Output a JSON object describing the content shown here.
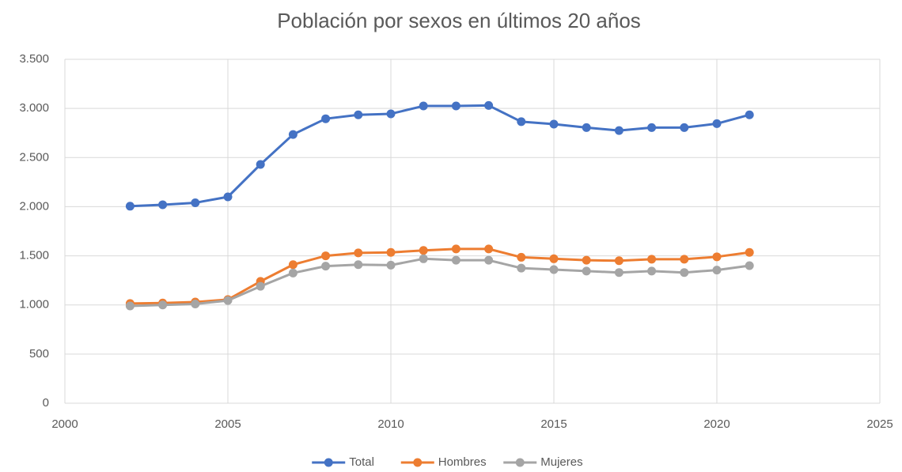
{
  "chart_data": {
    "type": "line",
    "title": "Población por sexos en últimos 20 años",
    "x": [
      2002,
      2003,
      2004,
      2005,
      2006,
      2007,
      2008,
      2009,
      2010,
      2011,
      2012,
      2013,
      2014,
      2015,
      2016,
      2017,
      2018,
      2019,
      2020,
      2021
    ],
    "series": [
      {
        "name": "Total",
        "color": "#4472c4",
        "values": [
          2005,
          2020,
          2040,
          2100,
          2430,
          2735,
          2895,
          2935,
          2945,
          3025,
          3025,
          3030,
          2865,
          2840,
          2805,
          2775,
          2805,
          2805,
          2845,
          2935
        ]
      },
      {
        "name": "Hombres",
        "color": "#ed7d31",
        "values": [
          1015,
          1020,
          1030,
          1055,
          1240,
          1410,
          1500,
          1530,
          1535,
          1555,
          1570,
          1570,
          1485,
          1470,
          1455,
          1450,
          1465,
          1465,
          1490,
          1535
        ]
      },
      {
        "name": "Mujeres",
        "color": "#a5a5a5",
        "values": [
          990,
          1000,
          1010,
          1045,
          1190,
          1325,
          1395,
          1410,
          1405,
          1470,
          1455,
          1455,
          1375,
          1360,
          1345,
          1330,
          1345,
          1330,
          1355,
          1400
        ]
      }
    ],
    "xlim": [
      2000,
      2025
    ],
    "xticks": [
      2000,
      2005,
      2010,
      2015,
      2020,
      2025
    ],
    "ylim": [
      0,
      3500
    ],
    "yticks": [
      0,
      500,
      {
        "value": 1000,
        "label": "1.000"
      },
      {
        "value": 1500,
        "label": "1.500"
      },
      {
        "value": 2000,
        "label": "2.000"
      },
      {
        "value": 2500,
        "label": "2.500"
      },
      {
        "value": 3000,
        "label": "3.000"
      },
      {
        "value": 3500,
        "label": "3.500"
      }
    ],
    "grid": true,
    "legend": "bottom"
  }
}
